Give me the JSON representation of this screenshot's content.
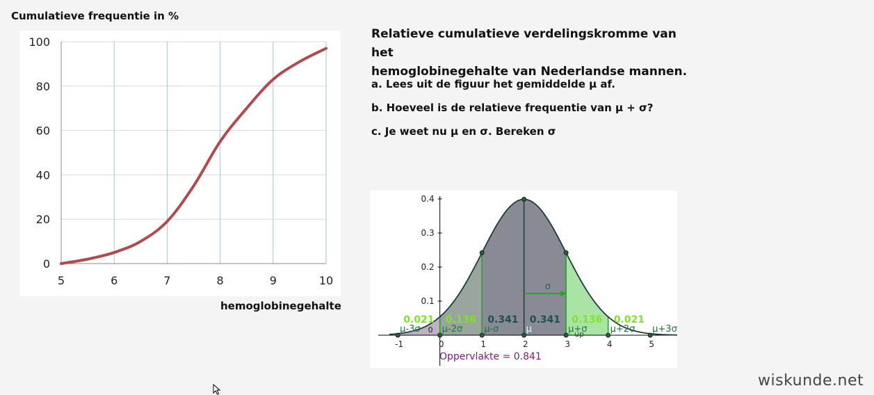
{
  "left_chart": {
    "ylabel": "Cumulatieve frequentie in %",
    "xlabel": "hemoglobinegehalte",
    "chart_data": {
      "type": "line",
      "title": "",
      "xlabel": "hemoglobinegehalte",
      "ylabel": "Cumulatieve frequentie in %",
      "xlim": [
        5,
        10
      ],
      "ylim": [
        0,
        100
      ],
      "xticks": [
        "5",
        "6",
        "7",
        "8",
        "9",
        "10"
      ],
      "yticks": [
        "0",
        "20",
        "40",
        "60",
        "80",
        "100"
      ],
      "grid": true,
      "series": [
        {
          "color": "#b04a4e",
          "x": [
            5,
            5.5,
            6,
            6.5,
            7,
            7.5,
            8,
            8.5,
            9,
            9.5,
            10
          ],
          "values": [
            0,
            2,
            5,
            10,
            19,
            35,
            55,
            70,
            83,
            91,
            97
          ]
        }
      ]
    }
  },
  "text": {
    "heading_line1": "Relatieve cumulatieve verdelingskromme van het",
    "heading_line2": "hemoglobinegehalte van Nederlandse mannen.",
    "question_a": "a. Lees uit de figuur het gemiddelde μ af.",
    "question_b": "b. Hoeveel is de relatieve frequentie van μ + σ?",
    "question_c": "c. Je weet nu μ en σ. Bereken σ"
  },
  "normal_chart": {
    "chart_data": {
      "type": "area",
      "mean": 2,
      "sd": 1,
      "xlim": [
        -1.3,
        5.9
      ],
      "ylim": [
        0,
        0.4
      ],
      "xticks": [
        "-1",
        "0",
        "1",
        "2",
        "3",
        "4",
        "5"
      ],
      "yticks": [
        "0.1",
        "0.2",
        "0.3",
        "0.4"
      ],
      "points_x": [
        -1,
        0,
        1,
        2,
        3,
        4,
        5
      ],
      "region_labels": [
        "μ-3σ",
        "μ-2σ",
        "μ-σ",
        "μ",
        "μ+σ",
        "μ+2σ",
        "μ+3σ"
      ],
      "probabilities": [
        "0.021",
        "0.136",
        "0.341",
        "0.341",
        "0.136",
        "0.021"
      ],
      "sigma_label": "σ",
      "up_label": "up",
      "origin_label": "0",
      "area_label": "Oppervlakte = 0.841",
      "colors": {
        "purple_fill": "#8a6f96",
        "green_fill": "#a9e4a4",
        "green_line": "#2a9a2a",
        "curve": "#1d3b3b",
        "prob_light": "#7ee32a",
        "prob_dark": "#1f4f4f",
        "area_text": "#7a1a7a"
      }
    }
  },
  "branding": {
    "site": "wiskunde.net"
  },
  "icons": {
    "cursor": "mouse-pointer-icon"
  }
}
